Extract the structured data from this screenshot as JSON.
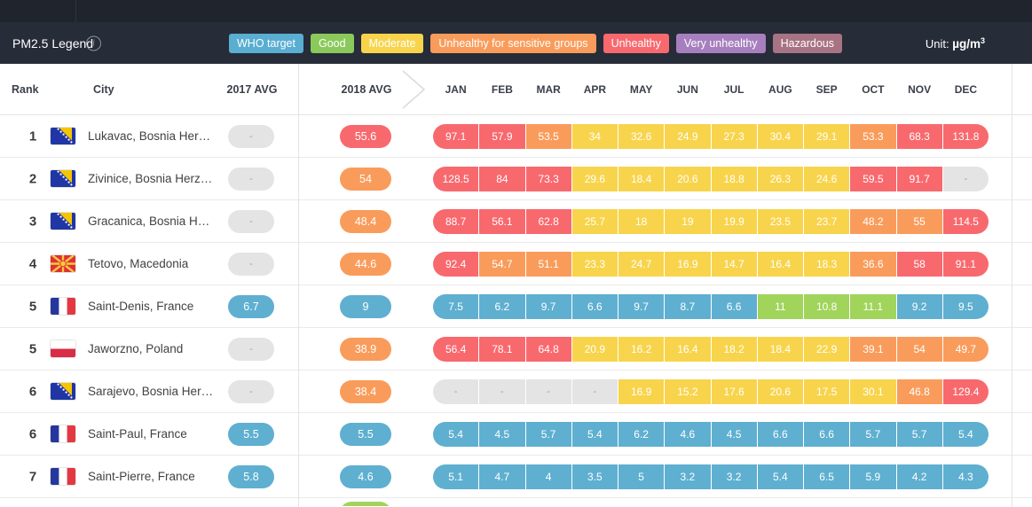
{
  "legend_bar": {
    "title": "PM2.5 Legend",
    "info_icon": "i",
    "unit_label": "Unit:",
    "unit_value": "µg/m",
    "unit_exponent": "3",
    "items": [
      {
        "label": "WHO target",
        "color": "#59AED2"
      },
      {
        "label": "Good",
        "color": "#8BC95A"
      },
      {
        "label": "Moderate",
        "color": "#F8D44C"
      },
      {
        "label": "Unhealthy for sensitive groups",
        "color": "#F99C5B"
      },
      {
        "label": "Unhealthy",
        "color": "#F8696E"
      },
      {
        "label": "Very unhealthy",
        "color": "#A77FBF"
      },
      {
        "label": "Hazardous",
        "color": "#A87383"
      }
    ]
  },
  "aqi_scale": {
    "no_data": {
      "color": "#E4E4E4",
      "text_color": "#9E9E9E"
    },
    "bands": [
      {
        "name": "who_target",
        "max": 10,
        "color": "#5FAFD0"
      },
      {
        "name": "good",
        "max": 12,
        "color": "#A0D45B"
      },
      {
        "name": "moderate",
        "max": 35.4,
        "color": "#F8D44C"
      },
      {
        "name": "unhealthy_for_sensitive_groups",
        "max": 55.4,
        "color": "#F99C5B"
      },
      {
        "name": "unhealthy",
        "max": 150.4,
        "color": "#F8696E"
      },
      {
        "name": "very_unhealthy",
        "max": 250.4,
        "color": "#A77FBF"
      },
      {
        "name": "hazardous",
        "max": 100000,
        "color": "#A87383"
      }
    ]
  },
  "table": {
    "columns": {
      "rank": "Rank",
      "city": "City",
      "avg2017": "2017 AVG",
      "avg2018": "2018 AVG"
    },
    "months": [
      "JAN",
      "FEB",
      "MAR",
      "APR",
      "MAY",
      "JUN",
      "JUL",
      "AUG",
      "SEP",
      "OCT",
      "NOV",
      "DEC"
    ],
    "no_data_placeholder": "-",
    "rows": [
      {
        "rank": "1",
        "flag": "bosnia-herzegovina",
        "city": "Lukavac, Bosnia Her…",
        "avg_2017": "-",
        "avg_2018": "55.6",
        "monthly": [
          "97.1",
          "57.9",
          "53.5",
          "34",
          "32.6",
          "24.9",
          "27.3",
          "30.4",
          "29.1",
          "53.3",
          "68.3",
          "131.8"
        ]
      },
      {
        "rank": "2",
        "flag": "bosnia-herzegovina",
        "city": "Zivinice, Bosnia Herz…",
        "avg_2017": "-",
        "avg_2018": "54",
        "monthly": [
          "128.5",
          "84",
          "73.3",
          "29.6",
          "18.4",
          "20.6",
          "18.8",
          "26.3",
          "24.6",
          "59.5",
          "91.7",
          "-"
        ]
      },
      {
        "rank": "3",
        "flag": "bosnia-herzegovina",
        "city": "Gracanica, Bosnia H…",
        "avg_2017": "-",
        "avg_2018": "48.4",
        "monthly": [
          "88.7",
          "56.1",
          "62.8",
          "25.7",
          "18",
          "19",
          "19.9",
          "23.5",
          "23.7",
          "48.2",
          "55",
          "114.5"
        ]
      },
      {
        "rank": "4",
        "flag": "macedonia",
        "city": "Tetovo, Macedonia",
        "avg_2017": "-",
        "avg_2018": "44.6",
        "monthly": [
          "92.4",
          "54.7",
          "51.1",
          "23.3",
          "24.7",
          "16.9",
          "14.7",
          "16.4",
          "18.3",
          "36.6",
          "58",
          "91.1"
        ]
      },
      {
        "rank": "5",
        "flag": "france",
        "city": "Saint-Denis, France",
        "avg_2017": "6.7",
        "avg_2018": "9",
        "monthly": [
          "7.5",
          "6.2",
          "9.7",
          "6.6",
          "9.7",
          "8.7",
          "6.6",
          "11",
          "10.8",
          "11.1",
          "9.2",
          "9.5"
        ]
      },
      {
        "rank": "5",
        "flag": "poland",
        "city": "Jaworzno, Poland",
        "avg_2017": "-",
        "avg_2018": "38.9",
        "monthly": [
          "56.4",
          "78.1",
          "64.8",
          "20.9",
          "16.2",
          "16.4",
          "18.2",
          "18.4",
          "22.9",
          "39.1",
          "54",
          "49.7"
        ]
      },
      {
        "rank": "6",
        "flag": "bosnia-herzegovina",
        "city": "Sarajevo, Bosnia Her…",
        "avg_2017": "-",
        "avg_2018": "38.4",
        "monthly": [
          "-",
          "-",
          "-",
          "-",
          "16.9",
          "15.2",
          "17.6",
          "20.6",
          "17.5",
          "30.1",
          "46.8",
          "129.4"
        ]
      },
      {
        "rank": "6",
        "flag": "france",
        "city": "Saint-Paul, France",
        "avg_2017": "5.5",
        "avg_2018": "5.5",
        "monthly": [
          "5.4",
          "4.5",
          "5.7",
          "5.4",
          "6.2",
          "4.6",
          "4.5",
          "6.6",
          "6.6",
          "5.7",
          "5.7",
          "5.4"
        ]
      },
      {
        "rank": "7",
        "flag": "france",
        "city": "Saint-Pierre, France",
        "avg_2017": "5.8",
        "avg_2018": "4.6",
        "monthly": [
          "5.1",
          "4.7",
          "4",
          "3.5",
          "5",
          "3.2",
          "3.2",
          "5.4",
          "6.5",
          "5.9",
          "4.2",
          "4.3"
        ]
      }
    ]
  }
}
